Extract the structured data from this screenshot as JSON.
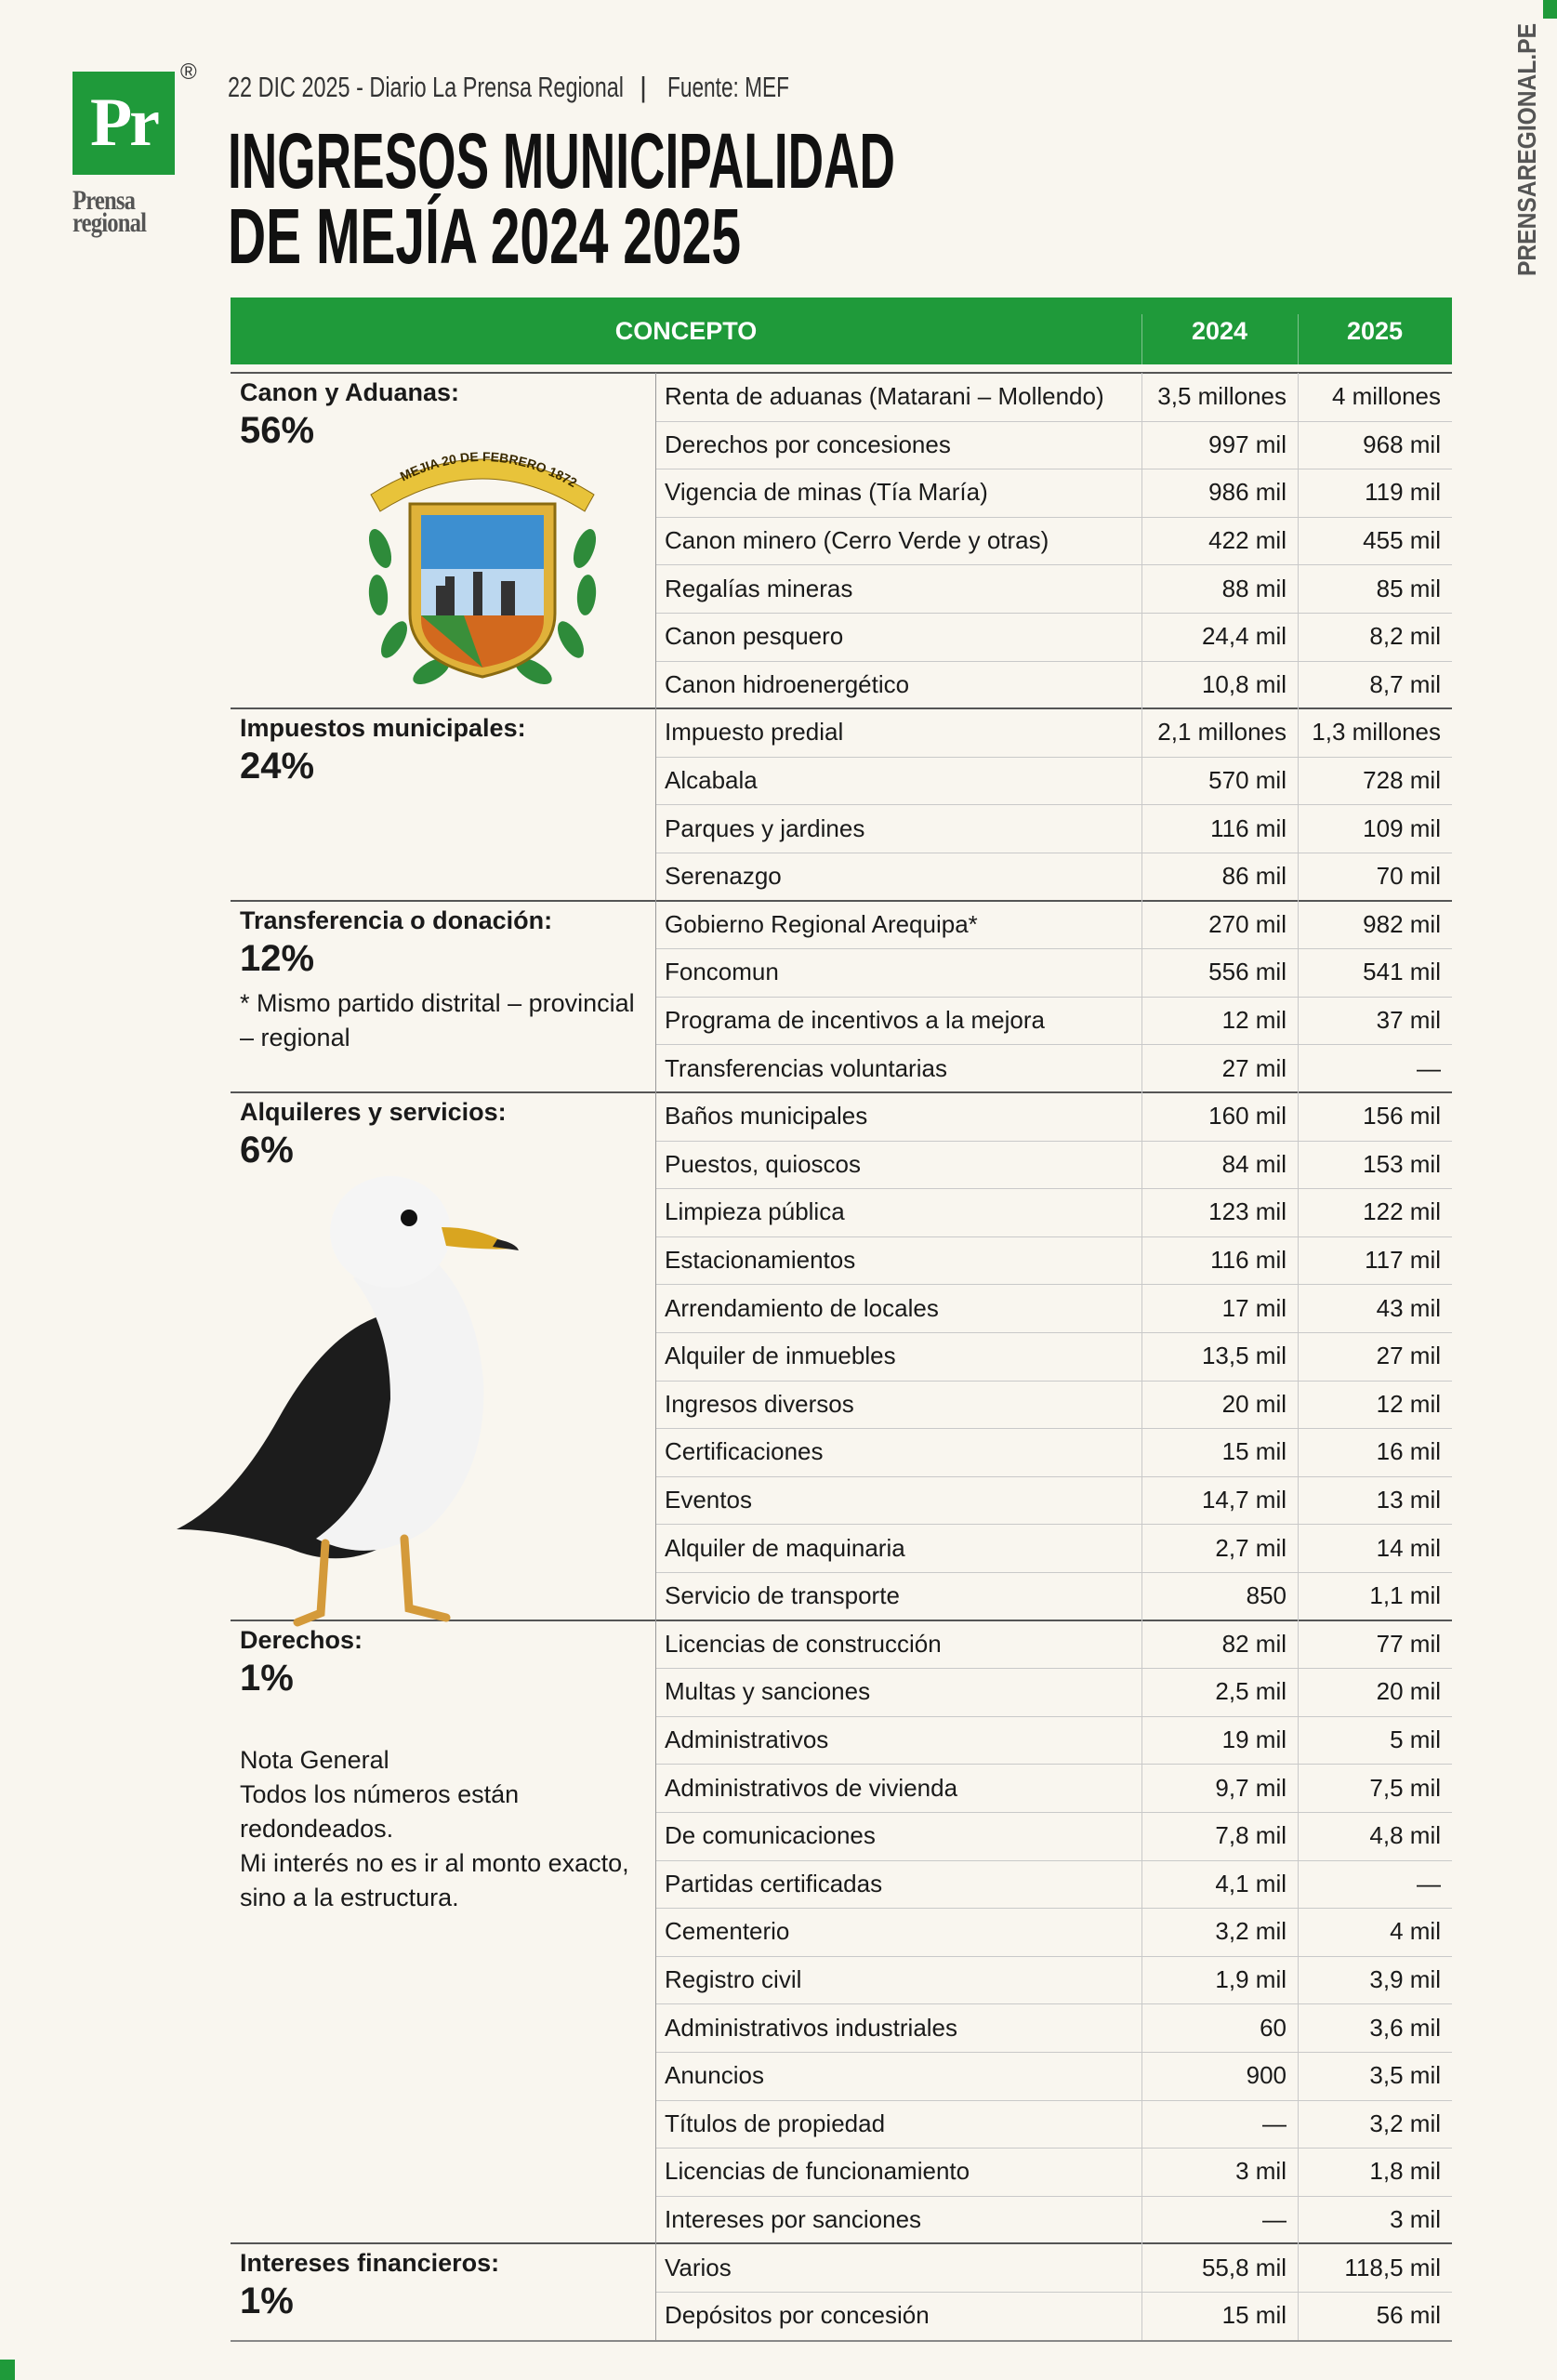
{
  "logo": {
    "mark": "Pr",
    "registered": "®",
    "name_lines": [
      "Prensa",
      "regional"
    ]
  },
  "header": {
    "date_source": "22 DIC 2025 - Diario La Prensa Regional",
    "separator": "|",
    "source": "Fuente: MEF",
    "title_lines": [
      "INGRESOS MUNICIPALIDAD",
      "DE MEJÍA 2024 2025"
    ]
  },
  "side_text": "PRENSAREGIONAL.PE",
  "emblem_text": "MEJIA 20 DE FEBRERO 1872",
  "table": {
    "columns": [
      "CONCEPTO",
      "2024",
      "2025"
    ],
    "groups": [
      {
        "label": "Canon y Aduanas:",
        "percent": "56%",
        "rows": [
          [
            "Renta de aduanas (Matarani – Mollendo)",
            "3,5 millones",
            "4 millones"
          ],
          [
            "Derechos por concesiones",
            "997 mil",
            "968 mil"
          ],
          [
            "Vigencia de minas (Tía María)",
            "986 mil",
            "119 mil"
          ],
          [
            "Canon minero (Cerro Verde y otras)",
            "422 mil",
            "455 mil"
          ],
          [
            "Regalías mineras",
            "88 mil",
            "85 mil"
          ],
          [
            "Canon pesquero",
            "24,4 mil",
            "8,2 mil"
          ],
          [
            "Canon hidroenergético",
            "10,8 mil",
            "8,7 mil"
          ]
        ]
      },
      {
        "label": "Impuestos municipales:",
        "percent": "24%",
        "rows": [
          [
            "Impuesto predial",
            "2,1 millones",
            "1,3 millones"
          ],
          [
            "Alcabala",
            "570 mil",
            "728 mil"
          ],
          [
            "Parques y jardines",
            "116 mil",
            "109 mil"
          ],
          [
            "Serenazgo",
            "86 mil",
            "70 mil"
          ]
        ]
      },
      {
        "label": "Transferencia o donación:",
        "percent": "12%",
        "note": [
          "* Mismo partido distrital – provincial – regional"
        ],
        "rows": [
          [
            "Gobierno Regional Arequipa*",
            "270 mil",
            "982 mil"
          ],
          [
            "Foncomun",
            "556 mil",
            "541 mil"
          ],
          [
            "Programa de incentivos a la mejora",
            "12 mil",
            "37 mil"
          ],
          [
            "Transferencias voluntarias",
            "27 mil",
            "—"
          ]
        ]
      },
      {
        "label": "Alquileres y servicios:",
        "percent": "6%",
        "rows": [
          [
            "Baños municipales",
            "160 mil",
            "156 mil"
          ],
          [
            "Puestos, quioscos",
            "84 mil",
            "153 mil"
          ],
          [
            "Limpieza pública",
            "123 mil",
            "122 mil"
          ],
          [
            "Estacionamientos",
            "116 mil",
            "117 mil"
          ],
          [
            "Arrendamiento de locales",
            "17 mil",
            "43 mil"
          ],
          [
            "Alquiler de inmuebles",
            "13,5 mil",
            "27 mil"
          ],
          [
            "Ingresos diversos",
            "20 mil",
            "12 mil"
          ],
          [
            "Certificaciones",
            "15 mil",
            "16 mil"
          ],
          [
            "Eventos",
            "14,7 mil",
            "13 mil"
          ],
          [
            "Alquiler de maquinaria",
            "2,7 mil",
            "14 mil"
          ],
          [
            "Servicio de transporte",
            "850",
            "1,1 mil"
          ]
        ]
      },
      {
        "label": "Derechos:",
        "percent": "1%",
        "note": [
          "Nota General",
          "Todos los números están redondeados.",
          "Mi interés no es ir al monto exacto, sino a la estructura."
        ],
        "rows": [
          [
            "Licencias de construcción",
            "82 mil",
            "77 mil"
          ],
          [
            "Multas y sanciones",
            "2,5 mil",
            "20 mil"
          ],
          [
            "Administrativos",
            "19 mil",
            "5 mil"
          ],
          [
            "Administrativos de vivienda",
            "9,7 mil",
            "7,5 mil"
          ],
          [
            "De comunicaciones",
            "7,8 mil",
            "4,8 mil"
          ],
          [
            "Partidas certificadas",
            "4,1 mil",
            "—"
          ],
          [
            "Cementerio",
            "3,2 mil",
            "4 mil"
          ],
          [
            "Registro civil",
            "1,9 mil",
            "3,9 mil"
          ],
          [
            "Administrativos industriales",
            "60",
            "3,6 mil"
          ],
          [
            "Anuncios",
            "900",
            "3,5 mil"
          ],
          [
            "Títulos de propiedad",
            "—",
            "3,2 mil"
          ],
          [
            "Licencias de funcionamiento",
            "3 mil",
            "1,8 mil"
          ],
          [
            "Intereses por sanciones",
            "—",
            "3 mil"
          ]
        ]
      },
      {
        "label": "Intereses financieros:",
        "percent": "1%",
        "rows": [
          [
            "Varios",
            "55,8 mil",
            "118,5 mil"
          ],
          [
            "Depósitos por concesión",
            "15 mil",
            "56 mil"
          ]
        ]
      }
    ]
  }
}
